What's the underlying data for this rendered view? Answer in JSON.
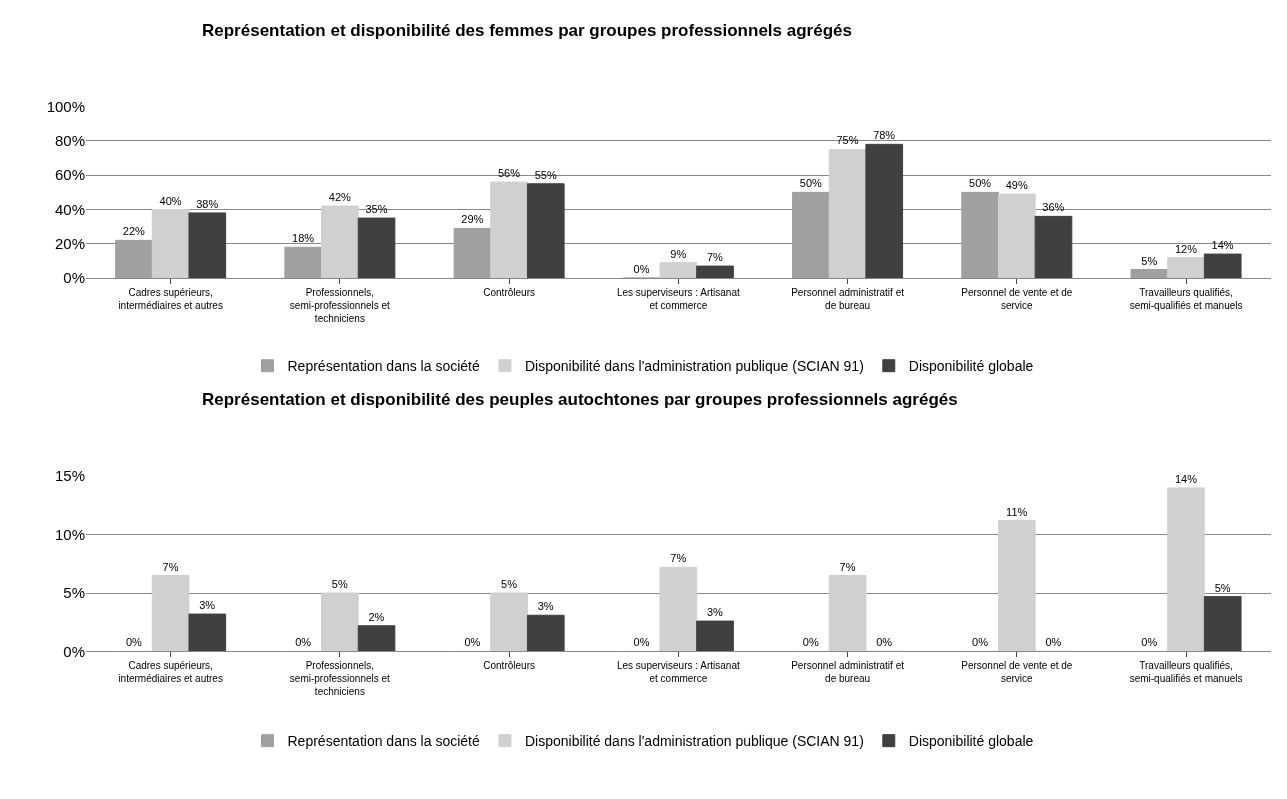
{
  "chart_data": [
    {
      "type": "bar",
      "title": "Représentation et disponibilité des femmes par groupes professionnels agrégés",
      "categories": [
        "Cadres supérieurs, intermédiaires et autres",
        "Professionnels, semi-professionnels et techniciens",
        "Contrôleurs",
        "Les superviseurs : Artisanat et commerce",
        "Personnel administratif et de bureau",
        "Personnel de vente et de service",
        "Travailleurs qualifiés, semi-qualifiés et manuels"
      ],
      "series": [
        {
          "name": "Représentation dans la société",
          "color": "#a0a0a0",
          "values": [
            22,
            18,
            29,
            0,
            50,
            50,
            5
          ],
          "value_labels": [
            "22%",
            "18%",
            "29%",
            "0%",
            "50%",
            "50%",
            "5%"
          ]
        },
        {
          "name": "Disponibilité dans l'administration publique (SCIAN 91)",
          "color": "#d0d0d0",
          "values": [
            40,
            42,
            56,
            9,
            75,
            49,
            12
          ],
          "value_labels": [
            "40%",
            "42%",
            "56%",
            "9%",
            "75%",
            "49%",
            "12%"
          ]
        },
        {
          "name": "Disponibilité globale",
          "color": "#404040",
          "values": [
            38,
            35,
            55,
            7,
            78,
            36,
            14
          ],
          "value_labels": [
            "38%",
            "35%",
            "55%",
            "7%",
            "78%",
            "36%",
            "14%"
          ]
        }
      ],
      "ylim": [
        0,
        100
      ],
      "yticks": [
        {
          "value": 0,
          "label": "0%"
        },
        {
          "value": 20,
          "label": "20%"
        },
        {
          "value": 40,
          "label": "40%"
        },
        {
          "value": 60,
          "label": "60%"
        },
        {
          "value": 80,
          "label": "80%"
        },
        {
          "value": 100,
          "label": "100%"
        }
      ],
      "grid": "y",
      "legend": "bottom"
    },
    {
      "type": "bar",
      "title": "Représentation et disponibilité des peuples autochtones par groupes professionnels agrégés",
      "categories": [
        "Cadres supérieurs, intermédiaires et autres",
        "Professionnels, semi-professionnels et techniciens",
        "Contrôleurs",
        "Les superviseurs : Artisanat et commerce",
        "Personnel administratif et de bureau",
        "Personnel de vente et de service",
        "Travailleurs qualifiés, semi-qualifiés et manuels"
      ],
      "series": [
        {
          "name": "Représentation dans la société",
          "color": "#a0a0a0",
          "values": [
            0,
            0,
            0,
            0,
            0,
            0,
            0
          ],
          "value_labels": [
            "0%",
            "0%",
            "0%",
            "0%",
            "0%",
            "0%",
            "0%"
          ]
        },
        {
          "name": "Disponibilité dans l'administration publique (SCIAN 91)",
          "color": "#d0d0d0",
          "values": [
            6.5,
            5.0,
            5.0,
            7.2,
            6.5,
            11.2,
            14.0
          ],
          "value_labels": [
            "7%",
            "5%",
            "5%",
            "7%",
            "7%",
            "11%",
            "14%"
          ]
        },
        {
          "name": "Disponibilité globale",
          "color": "#404040",
          "values": [
            3.2,
            2.2,
            3.1,
            2.6,
            0,
            0,
            4.7
          ],
          "value_labels": [
            "3%",
            "2%",
            "3%",
            "3%",
            "0%",
            "0%",
            "5%"
          ]
        }
      ],
      "ylim": [
        0,
        15
      ],
      "yticks": [
        {
          "value": 0,
          "label": "0%"
        },
        {
          "value": 5,
          "label": "5%"
        },
        {
          "value": 10,
          "label": "10%"
        },
        {
          "value": 15,
          "label": "15%"
        }
      ],
      "grid": "y",
      "legend": "bottom"
    }
  ]
}
